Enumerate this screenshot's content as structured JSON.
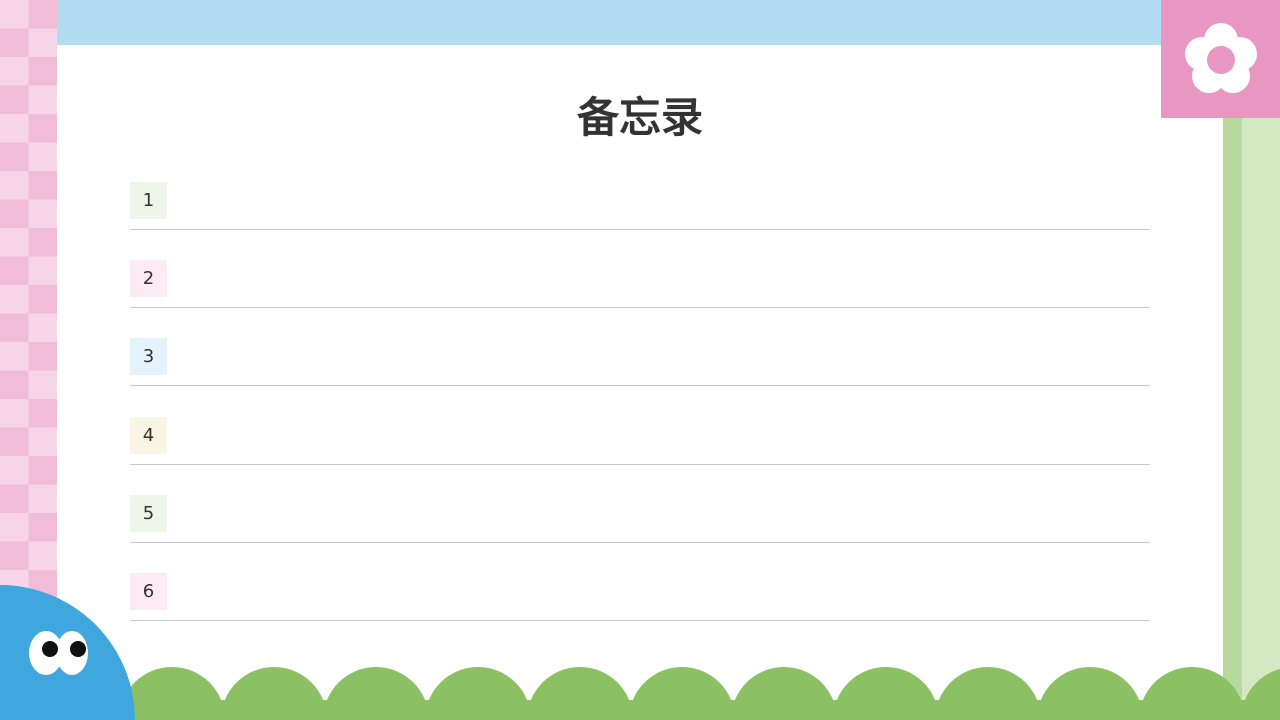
{
  "title": "备忘录",
  "items": [
    {
      "number": "1",
      "color": "#edf6e8"
    },
    {
      "number": "2",
      "color": "#fcebf4"
    },
    {
      "number": "3",
      "color": "#e3f2fb"
    },
    {
      "number": "4",
      "color": "#faf5e3"
    },
    {
      "number": "5",
      "color": "#edf6e8"
    },
    {
      "number": "6",
      "color": "#fcebf4"
    }
  ],
  "colors": {
    "sky": "#b3dcf2",
    "pink": "#e897c2",
    "green": "#8bc162",
    "blue": "#3fa6de"
  }
}
